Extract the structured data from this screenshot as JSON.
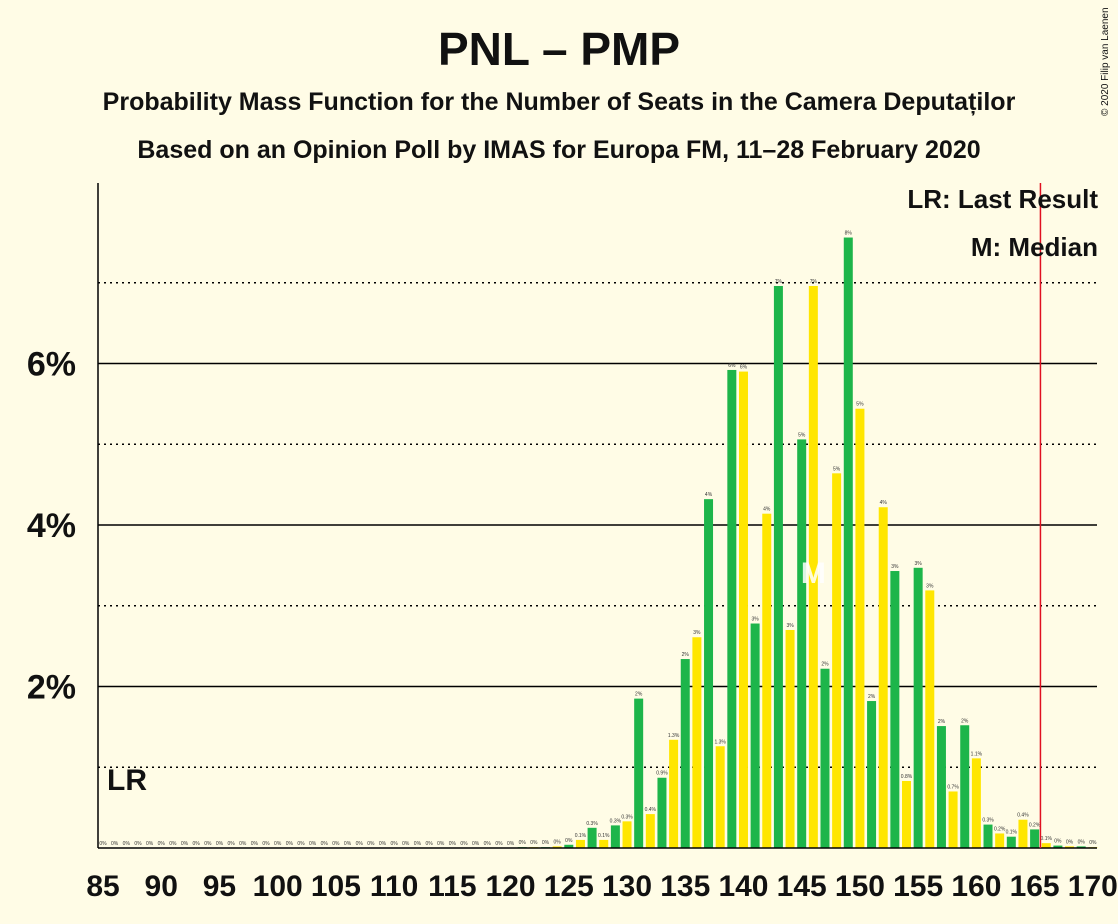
{
  "title": "PNL – PMP",
  "subtitle": "Probability Mass Function for the Number of Seats in the Camera Deputaților",
  "subtitle2": "Based on an Opinion Poll by IMAS for Europa FM, 11–28 February 2020",
  "copyright": "© 2020 Filip van Laenen",
  "legend": {
    "last_result": "LR: Last Result",
    "median": "M: Median"
  },
  "markers": {
    "lr_label": "LR",
    "median_label": "M"
  },
  "colors": {
    "background": "#fffce6",
    "series_a": "#1db54a",
    "series_b": "#ffe600",
    "last_result_line": "#e01020"
  },
  "chart_data": {
    "type": "bar",
    "xlabel": "",
    "ylabel": "",
    "x_range": [
      85,
      170
    ],
    "ylim": [
      0,
      8.2
    ],
    "y_ticks": [
      {
        "value": 2,
        "label": "2%"
      },
      {
        "value": 4,
        "label": "4%"
      },
      {
        "value": 6,
        "label": "6%"
      }
    ],
    "x_ticks": [
      85,
      90,
      95,
      100,
      105,
      110,
      115,
      120,
      125,
      130,
      135,
      140,
      145,
      150,
      155,
      160,
      165,
      170
    ],
    "last_result_seats": 166,
    "median_seats": 146,
    "bars": [
      {
        "x": 85,
        "y": 0,
        "label": "0%"
      },
      {
        "x": 86,
        "y": 0,
        "label": "0%"
      },
      {
        "x": 87,
        "y": 0,
        "label": "0%"
      },
      {
        "x": 88,
        "y": 0,
        "label": "0%"
      },
      {
        "x": 89,
        "y": 0,
        "label": "0%"
      },
      {
        "x": 90,
        "y": 0,
        "label": "0%"
      },
      {
        "x": 91,
        "y": 0,
        "label": "0%"
      },
      {
        "x": 92,
        "y": 0,
        "label": "0%"
      },
      {
        "x": 93,
        "y": 0,
        "label": "0%"
      },
      {
        "x": 94,
        "y": 0,
        "label": "0%"
      },
      {
        "x": 95,
        "y": 0,
        "label": "0%"
      },
      {
        "x": 96,
        "y": 0,
        "label": "0%"
      },
      {
        "x": 97,
        "y": 0,
        "label": "0%"
      },
      {
        "x": 98,
        "y": 0,
        "label": "0%"
      },
      {
        "x": 99,
        "y": 0,
        "label": "0%"
      },
      {
        "x": 100,
        "y": 0,
        "label": "0%"
      },
      {
        "x": 101,
        "y": 0,
        "label": "0%"
      },
      {
        "x": 102,
        "y": 0,
        "label": "0%"
      },
      {
        "x": 103,
        "y": 0,
        "label": "0%"
      },
      {
        "x": 104,
        "y": 0,
        "label": "0%"
      },
      {
        "x": 105,
        "y": 0,
        "label": "0%"
      },
      {
        "x": 106,
        "y": 0,
        "label": "0%"
      },
      {
        "x": 107,
        "y": 0,
        "label": "0%"
      },
      {
        "x": 108,
        "y": 0,
        "label": "0%"
      },
      {
        "x": 109,
        "y": 0,
        "label": "0%"
      },
      {
        "x": 110,
        "y": 0,
        "label": "0%"
      },
      {
        "x": 111,
        "y": 0,
        "label": "0%"
      },
      {
        "x": 112,
        "y": 0,
        "label": "0%"
      },
      {
        "x": 113,
        "y": 0,
        "label": "0%"
      },
      {
        "x": 114,
        "y": 0,
        "label": "0%"
      },
      {
        "x": 115,
        "y": 0,
        "label": "0%"
      },
      {
        "x": 116,
        "y": 0,
        "label": "0%"
      },
      {
        "x": 117,
        "y": 0,
        "label": "0%"
      },
      {
        "x": 118,
        "y": 0,
        "label": "0%"
      },
      {
        "x": 119,
        "y": 0,
        "label": "0%"
      },
      {
        "x": 120,
        "y": 0,
        "label": "0%"
      },
      {
        "x": 121,
        "y": 0.01,
        "label": "0%"
      },
      {
        "x": 122,
        "y": 0.01,
        "label": "0%"
      },
      {
        "x": 123,
        "y": 0.01,
        "label": "0%"
      },
      {
        "x": 124,
        "y": 0.02,
        "label": "0%"
      },
      {
        "x": 125,
        "y": 0.04,
        "label": "0%"
      },
      {
        "x": 126,
        "y": 0.1,
        "label": "0.1%"
      },
      {
        "x": 127,
        "y": 0.25,
        "label": "0.3%"
      },
      {
        "x": 128,
        "y": 0.1,
        "label": "0.1%"
      },
      {
        "x": 129,
        "y": 0.28,
        "label": "0.3%"
      },
      {
        "x": 130,
        "y": 0.33,
        "label": "0.3%"
      },
      {
        "x": 131,
        "y": 1.85,
        "label": "2%"
      },
      {
        "x": 132,
        "y": 0.42,
        "label": "0.4%"
      },
      {
        "x": 133,
        "y": 0.87,
        "label": "0.9%"
      },
      {
        "x": 134,
        "y": 1.34,
        "label": "1.3%"
      },
      {
        "x": 135,
        "y": 2.34,
        "label": "2%"
      },
      {
        "x": 136,
        "y": 2.61,
        "label": "3%"
      },
      {
        "x": 137,
        "y": 4.32,
        "label": "4%"
      },
      {
        "x": 138,
        "y": 1.26,
        "label": "1.3%"
      },
      {
        "x": 139,
        "y": 5.92,
        "label": "6%"
      },
      {
        "x": 140,
        "y": 5.9,
        "label": "6%"
      },
      {
        "x": 141,
        "y": 2.78,
        "label": "3%"
      },
      {
        "x": 142,
        "y": 4.14,
        "label": "4%"
      },
      {
        "x": 143,
        "y": 6.96,
        "label": "7%"
      },
      {
        "x": 144,
        "y": 2.7,
        "label": "3%"
      },
      {
        "x": 145,
        "y": 5.06,
        "label": "5%"
      },
      {
        "x": 146,
        "y": 6.96,
        "label": "7%"
      },
      {
        "x": 147,
        "y": 2.22,
        "label": "2%"
      },
      {
        "x": 148,
        "y": 4.64,
        "label": "5%"
      },
      {
        "x": 149,
        "y": 7.56,
        "label": "8%"
      },
      {
        "x": 150,
        "y": 5.44,
        "label": "5%"
      },
      {
        "x": 151,
        "y": 1.82,
        "label": "2%"
      },
      {
        "x": 152,
        "y": 4.22,
        "label": "4%"
      },
      {
        "x": 153,
        "y": 3.43,
        "label": "3%"
      },
      {
        "x": 154,
        "y": 0.83,
        "label": "0.8%"
      },
      {
        "x": 155,
        "y": 3.47,
        "label": "3%"
      },
      {
        "x": 156,
        "y": 3.19,
        "label": "3%"
      },
      {
        "x": 157,
        "y": 1.51,
        "label": "2%"
      },
      {
        "x": 158,
        "y": 0.7,
        "label": "0.7%"
      },
      {
        "x": 159,
        "y": 1.52,
        "label": "2%"
      },
      {
        "x": 160,
        "y": 1.11,
        "label": "1.1%"
      },
      {
        "x": 161,
        "y": 0.29,
        "label": "0.3%"
      },
      {
        "x": 162,
        "y": 0.18,
        "label": "0.2%"
      },
      {
        "x": 163,
        "y": 0.14,
        "label": "0.1%"
      },
      {
        "x": 164,
        "y": 0.35,
        "label": "0.4%"
      },
      {
        "x": 165,
        "y": 0.23,
        "label": "0.2%"
      },
      {
        "x": 166,
        "y": 0.06,
        "label": "0.1%"
      },
      {
        "x": 167,
        "y": 0.03,
        "label": "0%"
      },
      {
        "x": 168,
        "y": 0.02,
        "label": "0%"
      },
      {
        "x": 169,
        "y": 0.02,
        "label": "0%"
      },
      {
        "x": 170,
        "y": 0.01,
        "label": "0%"
      }
    ]
  }
}
